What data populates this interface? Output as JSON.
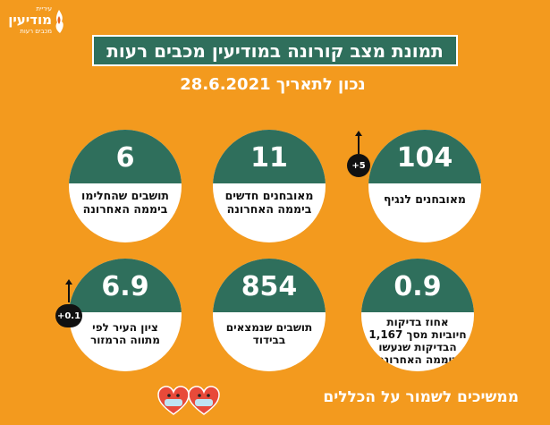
{
  "logo": {
    "top": "עיריית",
    "main": "מודיעין",
    "sub": "מכבים רעות"
  },
  "title": "תמונת מצב קורונה במודיעין מכבים רעות",
  "date": "נכון לתאריך 28.6.2021",
  "cards": [
    {
      "value": "104",
      "label": "מאובחנים לנגיף",
      "badge": "+5"
    },
    {
      "value": "11",
      "label": "מאובחנים חדשים ביממה האחרונה"
    },
    {
      "value": "6",
      "label": "תושבים שהחלימו ביממה האחרונה"
    },
    {
      "value": "0.9",
      "label": "אחוז בדיקות חיוביות מסך 1,167 הבדיקות שנעשו ביממה האחרונה"
    },
    {
      "value": "854",
      "label": "תושבים שנמצאים בבידוד"
    },
    {
      "value": "6.9",
      "label": "ציון העיר לפי מתווה הרמזור",
      "badge": "+0.1"
    }
  ],
  "footer": "ממשיכים לשמור על הכללים",
  "colors": {
    "background": "#f39a1e",
    "accent": "#2f6f5c"
  }
}
